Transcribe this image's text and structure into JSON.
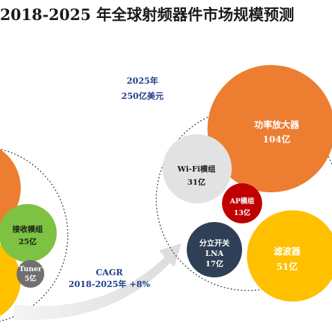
{
  "title": "2018-2025 年全球射频器件市场规模预测",
  "year_2025": {
    "year": "2025年",
    "total": "250亿美元",
    "segments": [
      {
        "name": "功率放大器",
        "value": "104亿"
      },
      {
        "name": "Wi-Fi模组",
        "value": "31亿"
      },
      {
        "name": "AP模组",
        "value": "13亿"
      },
      {
        "name": "分立开关",
        "name2": "LNA",
        "value": "17亿"
      },
      {
        "name": "滤波器",
        "value": "51亿"
      }
    ]
  },
  "year_2018": {
    "segments": [
      {
        "name": "接收模组",
        "value": "25亿"
      },
      {
        "name": "Tuner",
        "value": "5亿"
      }
    ]
  },
  "cagr": {
    "line1": "CAGR",
    "line2": "2018-2025年 +8%"
  },
  "colors": {
    "orange": "#ED7D31",
    "green": "#7DC242",
    "yellow": "#FFC000",
    "gray": "#707070",
    "light_gray": "#E2E2E2",
    "red": "#C00000",
    "navy": "#2F3F56",
    "title_blue": "#1F3F8A",
    "arrow": "#E5E5E5"
  }
}
